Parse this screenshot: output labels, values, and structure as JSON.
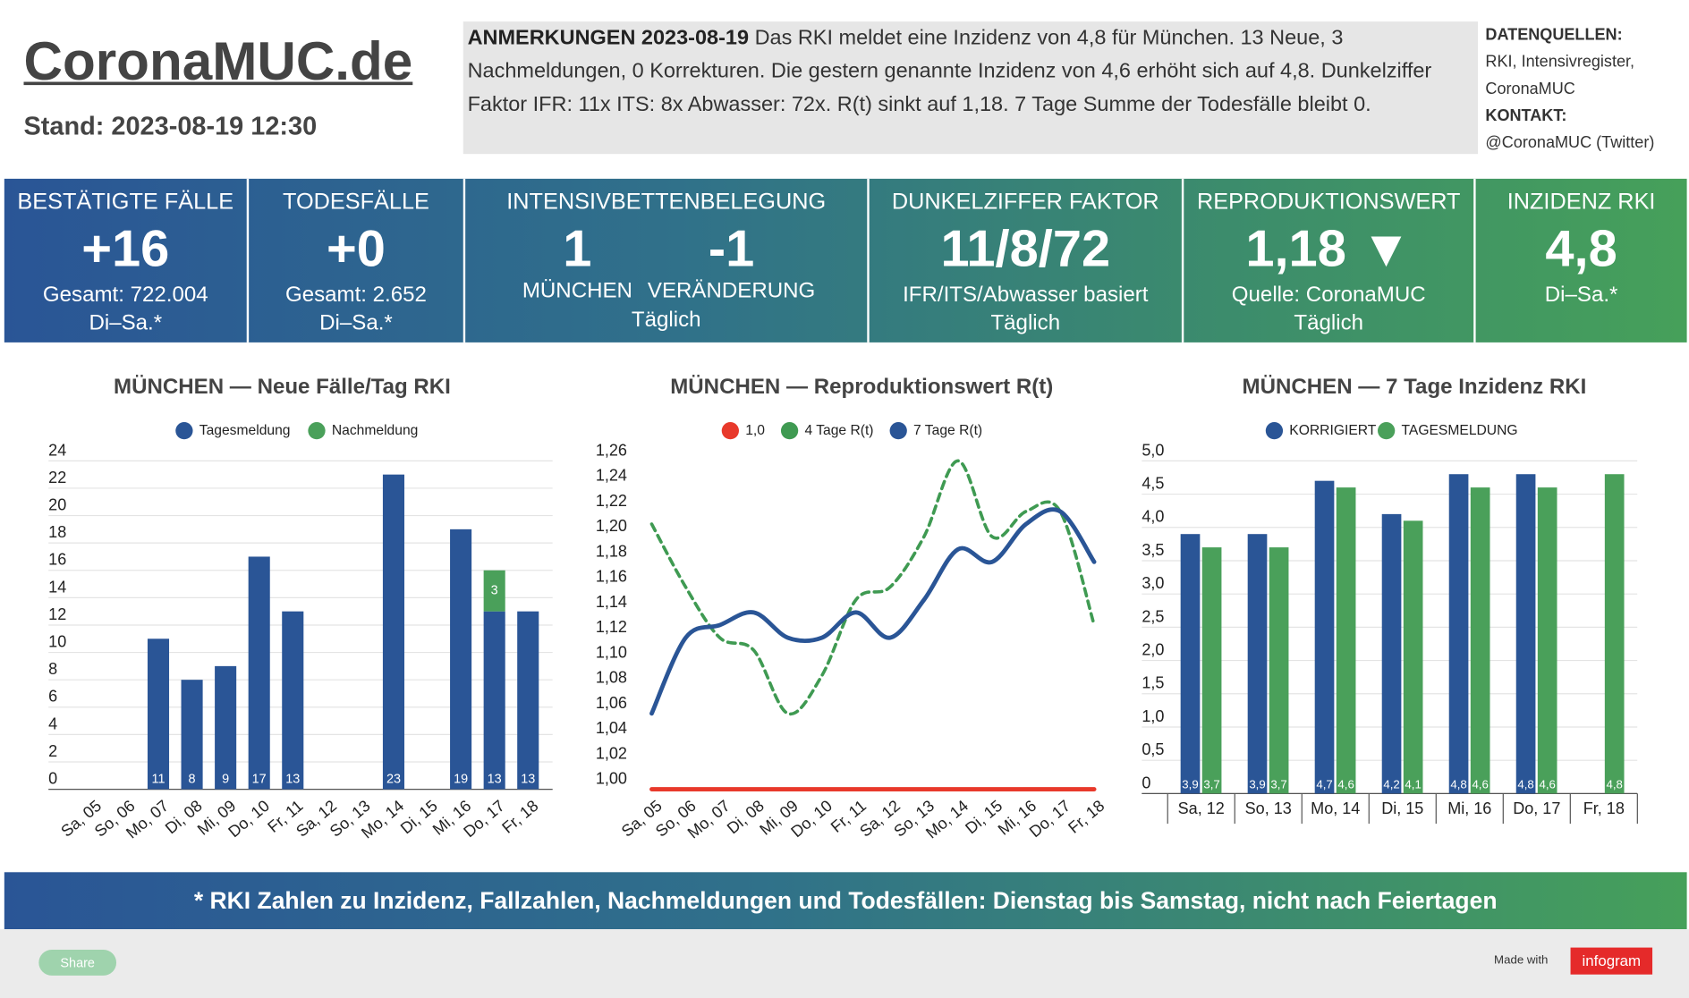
{
  "header": {
    "title": "CoronaMUC.de",
    "stand": "Stand: 2023-08-19 12:30"
  },
  "notes": {
    "heading": "ANMERKUNGEN 2023-08-19",
    "text": "Das RKI meldet eine Inzidenz von 4,8 für München. 13 Neue, 3 Nachmeldungen, 0 Korrekturen. Die gestern genannte Inzidenz von 4,6 erhöht sich auf 4,8. Dunkelziffer Faktor IFR: 11x ITS: 8x Abwasser: 72x. R(t) sinkt auf 1,18. 7 Tage Summe der Todesfälle bleibt 0."
  },
  "sources": {
    "heading": "DATENQUELLEN:",
    "text": "RKI, Intensivregister, CoronaMUC",
    "contact_heading": "KONTAKT:",
    "contact": "@CoronaMUC (Twitter)"
  },
  "kpis": [
    {
      "title": "BESTÄTIGTE FÄLLE",
      "value": "+16",
      "lines": [
        "Gesamt: 722.004",
        "Di–Sa.*"
      ]
    },
    {
      "title": "TODESFÄLLE",
      "value": "+0",
      "lines": [
        "Gesamt: 2.652",
        "Di–Sa.*"
      ]
    },
    {
      "title": "INTENSIVBETTENBELEGUNG",
      "values": [
        {
          "value": "1",
          "label": "MÜNCHEN"
        },
        {
          "value": "-1",
          "label": "VERÄNDERUNG"
        }
      ],
      "lines": [
        "Täglich"
      ]
    },
    {
      "title": "DUNKELZIFFER FAKTOR",
      "value": "11/8/72",
      "lines": [
        "IFR/ITS/Abwasser basiert",
        "Täglich"
      ]
    },
    {
      "title": "REPRODUKTIONSWERT",
      "value": "1,18 ▼",
      "lines": [
        "Quelle: CoronaMUC",
        "Täglich"
      ]
    },
    {
      "title": "INZIDENZ RKI",
      "value": "4,8",
      "lines": [
        "Di–Sa.*"
      ]
    }
  ],
  "chart_data": [
    {
      "type": "bar",
      "stacked": true,
      "title": "MÜNCHEN — Neue Fälle/Tag RKI",
      "categories": [
        "Sa, 05",
        "So, 06",
        "Mo, 07",
        "Di, 08",
        "Mi, 09",
        "Do, 10",
        "Fr, 11",
        "Sa, 12",
        "So, 13",
        "Mo, 14",
        "Di, 15",
        "Mi, 16",
        "Do, 17",
        "Fr, 18"
      ],
      "series": [
        {
          "name": "Tagesmeldung",
          "color": "#2a5596",
          "values": [
            null,
            null,
            11,
            8,
            9,
            17,
            13,
            null,
            null,
            23,
            null,
            19,
            13,
            13
          ]
        },
        {
          "name": "Nachmeldung",
          "color": "#4aa05a",
          "values": [
            null,
            null,
            null,
            null,
            null,
            null,
            null,
            null,
            null,
            null,
            null,
            null,
            3,
            null
          ]
        }
      ],
      "ylim": [
        0,
        24
      ],
      "yticks": [
        0,
        2,
        4,
        6,
        8,
        10,
        12,
        14,
        16,
        18,
        20,
        22,
        24
      ],
      "grid": true
    },
    {
      "type": "line",
      "title": "MÜNCHEN — Reproduktionswert R(t)",
      "categories": [
        "Sa, 05",
        "So, 06",
        "Mo, 07",
        "Di, 08",
        "Mi, 09",
        "Do, 10",
        "Fr, 11",
        "Sa, 12",
        "So, 13",
        "Mo, 14",
        "Di, 15",
        "Mi, 16",
        "Do, 17",
        "Fr, 18"
      ],
      "series": [
        {
          "name": "1,0",
          "color": "#e8392b",
          "line_style": "solid",
          "values": [
            1.0,
            1.0,
            1.0,
            1.0,
            1.0,
            1.0,
            1.0,
            1.0,
            1.0,
            1.0,
            1.0,
            1.0,
            1.0,
            1.0
          ]
        },
        {
          "name": "4 Tage R(t)",
          "color": "#3f9a52",
          "line_style": "dashed",
          "values": [
            1.21,
            1.16,
            1.12,
            1.11,
            1.06,
            1.09,
            1.15,
            1.16,
            1.2,
            1.26,
            1.2,
            1.22,
            1.22,
            1.13
          ]
        },
        {
          "name": "7 Tage R(t)",
          "color": "#2a5596",
          "line_style": "solid",
          "values": [
            1.06,
            1.12,
            1.13,
            1.14,
            1.12,
            1.12,
            1.14,
            1.12,
            1.15,
            1.19,
            1.18,
            1.21,
            1.22,
            1.18
          ]
        }
      ],
      "ylim": [
        1.0,
        1.26
      ],
      "yticks": [
        {
          "value": 1.0,
          "label": "1,00"
        },
        {
          "value": 1.02,
          "label": "1,02"
        },
        {
          "value": 1.04,
          "label": "1,04"
        },
        {
          "value": 1.06,
          "label": "1,06"
        },
        {
          "value": 1.08,
          "label": "1,08"
        },
        {
          "value": 1.1,
          "label": "1,10"
        },
        {
          "value": 1.12,
          "label": "1,12"
        },
        {
          "value": 1.14,
          "label": "1,14"
        },
        {
          "value": 1.16,
          "label": "1,16"
        },
        {
          "value": 1.18,
          "label": "1,18"
        },
        {
          "value": 1.2,
          "label": "1,20"
        },
        {
          "value": 1.22,
          "label": "1,22"
        },
        {
          "value": 1.24,
          "label": "1,24"
        },
        {
          "value": 1.26,
          "label": "1,26"
        }
      ],
      "grid": false
    },
    {
      "type": "bar",
      "stacked": false,
      "title": "MÜNCHEN — 7 Tage Inzidenz RKI",
      "categories": [
        "Sa, 12",
        "So, 13",
        "Mo, 14",
        "Di, 15",
        "Mi, 16",
        "Do, 17",
        "Fr, 18"
      ],
      "series": [
        {
          "name": "KORRIGIERT",
          "color": "#2a5596",
          "values": [
            3.9,
            3.9,
            4.7,
            4.2,
            4.8,
            4.8,
            null
          ],
          "value_labels": [
            "3,9",
            "3,9",
            "4,7",
            "4,2",
            "4,8",
            "4,8",
            null
          ]
        },
        {
          "name": "TAGESMELDUNG",
          "color": "#4aa05a",
          "values": [
            3.7,
            3.7,
            4.6,
            4.1,
            4.6,
            4.6,
            4.8
          ],
          "value_labels": [
            "3,7",
            "3,7",
            "4,6",
            "4,1",
            "4,6",
            "4,6",
            "4,8"
          ]
        }
      ],
      "ylim": [
        0,
        5
      ],
      "yticks": [
        0,
        {
          "value": 0.5,
          "label": "0,5"
        },
        {
          "value": 1.0,
          "label": "1,0"
        },
        {
          "value": 1.5,
          "label": "1,5"
        },
        {
          "value": 2.0,
          "label": "2,0"
        },
        {
          "value": 2.5,
          "label": "2,5"
        },
        {
          "value": 3.0,
          "label": "3,0"
        },
        {
          "value": 3.5,
          "label": "3,5"
        },
        {
          "value": 4.0,
          "label": "4,0"
        },
        {
          "value": 4.5,
          "label": "4,5"
        },
        {
          "value": 5.0,
          "label": "5,0"
        }
      ],
      "grid": true
    }
  ],
  "footer": {
    "banner": "* RKI Zahlen zu Inzidenz, Fallzahlen, Nachmeldungen und Todesfällen: Dienstag bis Samstag, nicht nach Feiertagen",
    "share": "Share",
    "made_with": "Made with",
    "brand": "infogram"
  }
}
